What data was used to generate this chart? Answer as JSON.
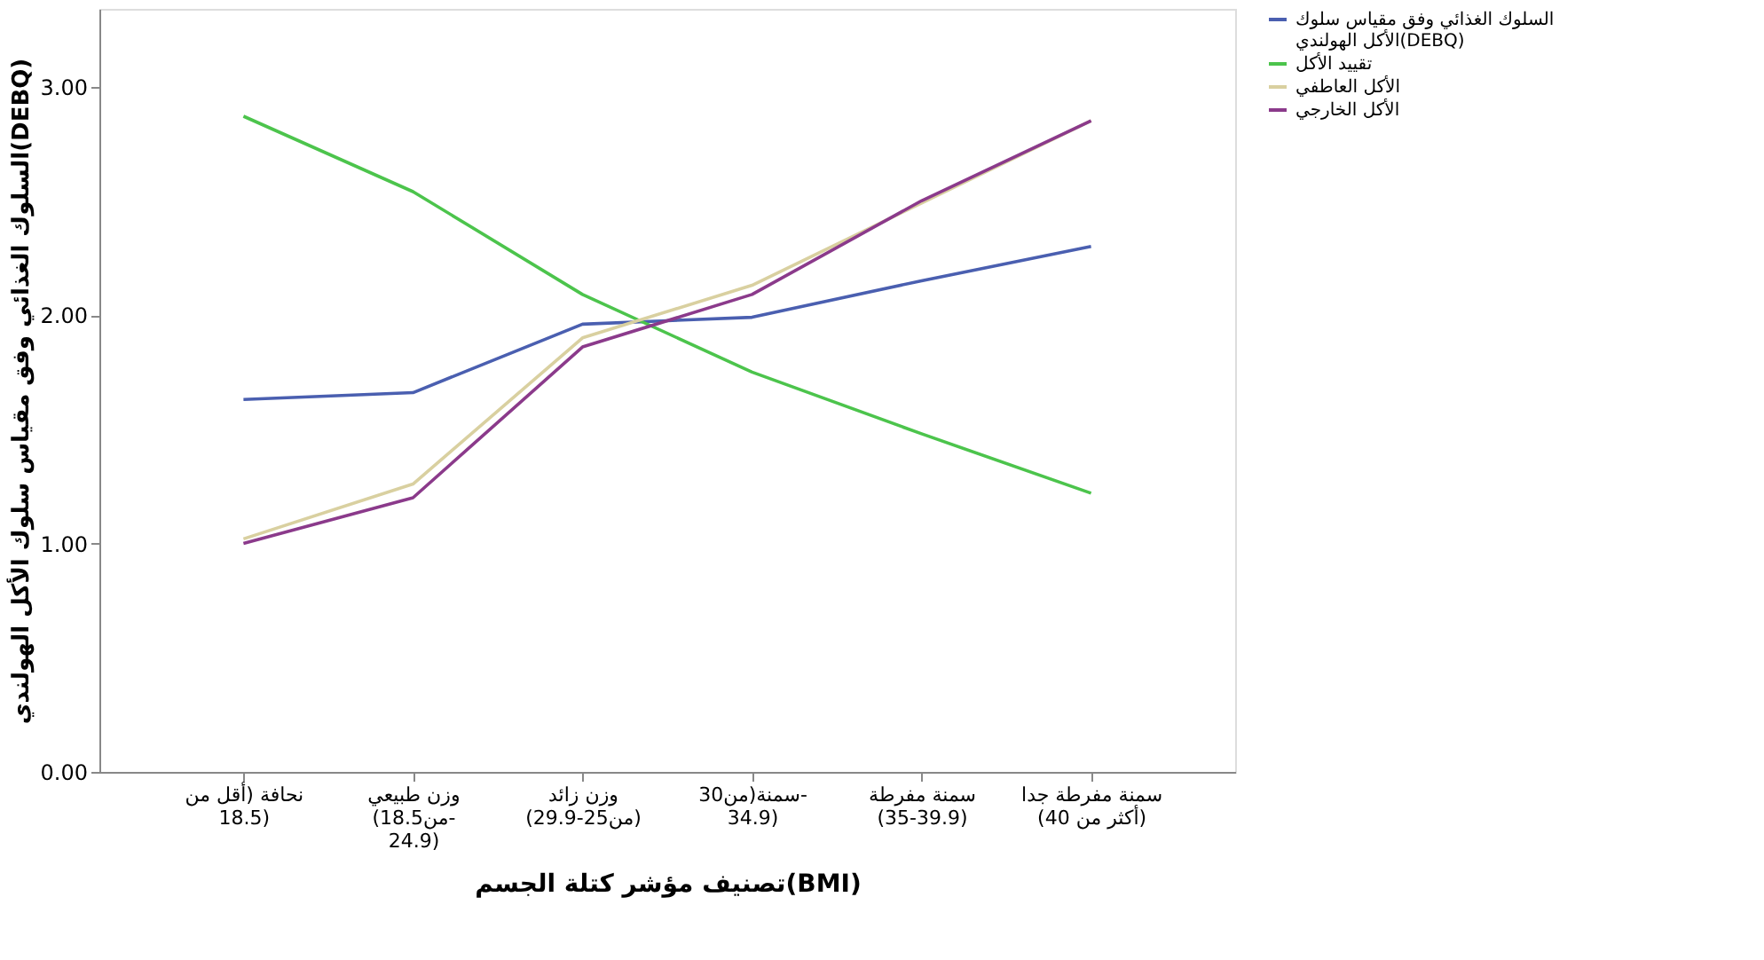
{
  "chart_data": {
    "type": "line",
    "xlabel": "تصنيف مؤشر كتلة الجسم(BMI)",
    "ylabel": "السلوك الغذائي وفق مقياس سلوك الأكل الهولندي(DEBQ)",
    "categories": [
      "نحافة (أقل من\n18.5)",
      "وزن طبيعي\n(من18.5-\n24.9)",
      "وزن زائد\n(من25-29.9)",
      "سمنة(من30-\n34.9)",
      "سمنة مفرطة\n(35-39.9)",
      "سمنة مفرطة جدا\n(أكثر من 40)"
    ],
    "series": [
      {
        "name": "السلوك الغذائي وفق مقياس سلوك\nالأكل الهولندي(DEBQ)",
        "color": "#4a5fb0",
        "values": [
          1.63,
          1.66,
          1.96,
          1.99,
          2.15,
          2.3
        ]
      },
      {
        "name": "تقييد الأكل",
        "color": "#4cc44c",
        "values": [
          2.87,
          2.54,
          2.09,
          1.75,
          1.48,
          1.22
        ]
      },
      {
        "name": "الأكل العاطفي",
        "color": "#d9d0a0",
        "values": [
          1.02,
          1.26,
          1.9,
          2.13,
          2.49,
          2.85
        ]
      },
      {
        "name": "الأكل الخارجي",
        "color": "#8b3a8b",
        "values": [
          1.0,
          1.2,
          1.86,
          2.09,
          2.5,
          2.85
        ]
      }
    ],
    "ylim": [
      0,
      3.34
    ],
    "yticks": [
      {
        "value": 0,
        "label": "0.00"
      },
      {
        "value": 1,
        "label": "1.00"
      },
      {
        "value": 2,
        "label": "2.00"
      },
      {
        "value": 3,
        "label": "3.00"
      }
    ],
    "grid": false,
    "legend": "top right",
    "marker": "none",
    "line_style": "solid"
  }
}
